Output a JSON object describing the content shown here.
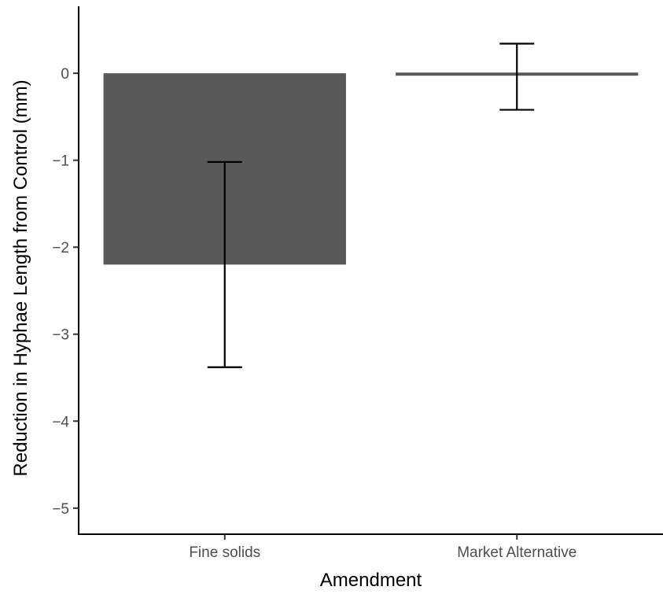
{
  "chart_data": {
    "type": "bar",
    "title": "",
    "xlabel": "Amendment",
    "ylabel": "Reduction in Hyphae Length from Control (mm)",
    "categories": [
      "Fine solids",
      "Market Alternative"
    ],
    "values": [
      -2.2,
      -0.02
    ],
    "error_bars": {
      "lower": [
        -3.38,
        -0.42
      ],
      "upper": [
        -1.02,
        0.34
      ]
    },
    "yticks": [
      0,
      -1,
      -2,
      -3,
      -4,
      -5
    ],
    "ytick_labels": [
      "0",
      "−1",
      "−2",
      "−3",
      "−4",
      "−5"
    ],
    "ylim": [
      -5.3,
      0.77
    ],
    "grid": false,
    "legend": "none",
    "colors": {
      "bar": "#595959",
      "error_bar": "#000000",
      "axis": "#000000",
      "tick_label": "#4d4d4d"
    }
  }
}
